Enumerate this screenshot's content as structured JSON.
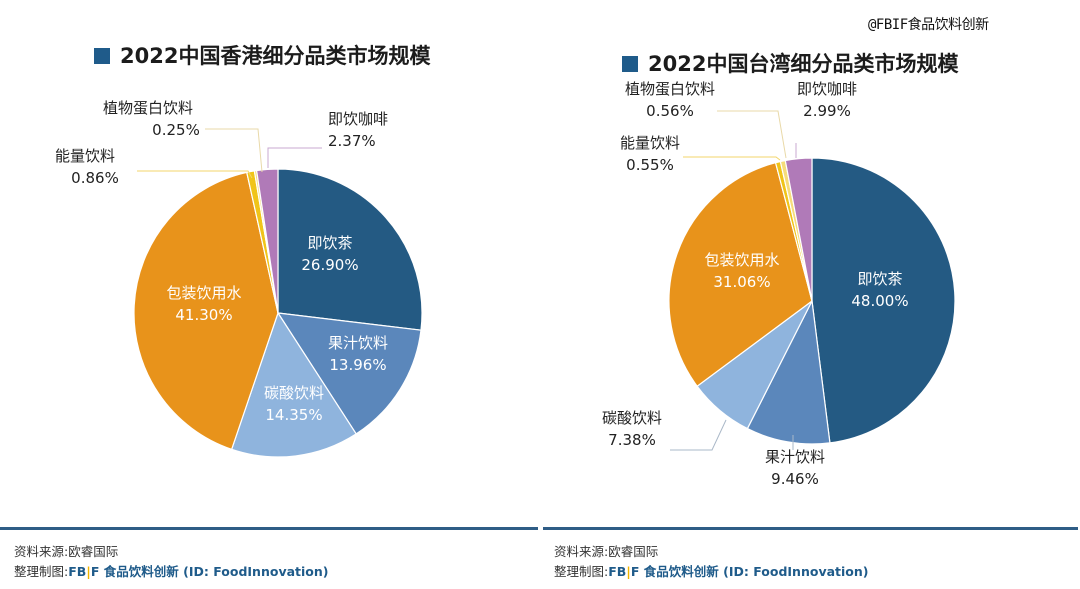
{
  "watermark": "@FBIF食品饮料创新",
  "colors": {
    "tea": "#245a83",
    "juice": "#5b87bb",
    "soda": "#8fb4dd",
    "water": "#e8931b",
    "energy": "#f0c419",
    "plant_protein": "#f6dc7a",
    "coffee": "#b07ab8",
    "title_square": "#1f5b8a",
    "divider": "#2f5d86"
  },
  "footer": {
    "source": "资料来源:欧睿国际",
    "made_prefix": "整理制图:",
    "brand_fb": "FB",
    "brand_bar": "|",
    "brand_f": "F",
    "brand_name": "食品饮料创新",
    "brand_id": "(ID: FoodInnovation)"
  },
  "chart_data": [
    {
      "type": "pie",
      "title": "2022中国香港细分品类市场规模",
      "slices": [
        {
          "label": "即饮茶",
          "value": 26.9,
          "display": "26.90%",
          "color_key": "tea"
        },
        {
          "label": "果汁饮料",
          "value": 13.96,
          "display": "13.96%",
          "color_key": "juice"
        },
        {
          "label": "碳酸饮料",
          "value": 14.35,
          "display": "14.35%",
          "color_key": "soda"
        },
        {
          "label": "包装饮用水",
          "value": 41.3,
          "display": "41.30%",
          "color_key": "water"
        },
        {
          "label": "能量饮料",
          "value": 0.86,
          "display": "0.86%",
          "color_key": "energy"
        },
        {
          "label": "植物蛋白饮料",
          "value": 0.25,
          "display": "0.25%",
          "color_key": "plant_protein"
        },
        {
          "label": "即饮咖啡",
          "value": 2.37,
          "display": "2.37%",
          "color_key": "coffee"
        }
      ]
    },
    {
      "type": "pie",
      "title": "2022中国台湾细分品类市场规模",
      "slices": [
        {
          "label": "即饮茶",
          "value": 48.0,
          "display": "48.00%",
          "color_key": "tea"
        },
        {
          "label": "果汁饮料",
          "value": 9.46,
          "display": "9.46%",
          "color_key": "juice"
        },
        {
          "label": "碳酸饮料",
          "value": 7.38,
          "display": "7.38%",
          "color_key": "soda"
        },
        {
          "label": "包装饮用水",
          "value": 31.06,
          "display": "31.06%",
          "color_key": "water"
        },
        {
          "label": "能量饮料",
          "value": 0.55,
          "display": "0.55%",
          "color_key": "energy"
        },
        {
          "label": "植物蛋白饮料",
          "value": 0.56,
          "display": "0.56%",
          "color_key": "plant_protein"
        },
        {
          "label": "即饮咖啡",
          "value": 2.99,
          "display": "2.99%",
          "color_key": "coffee"
        }
      ]
    }
  ]
}
